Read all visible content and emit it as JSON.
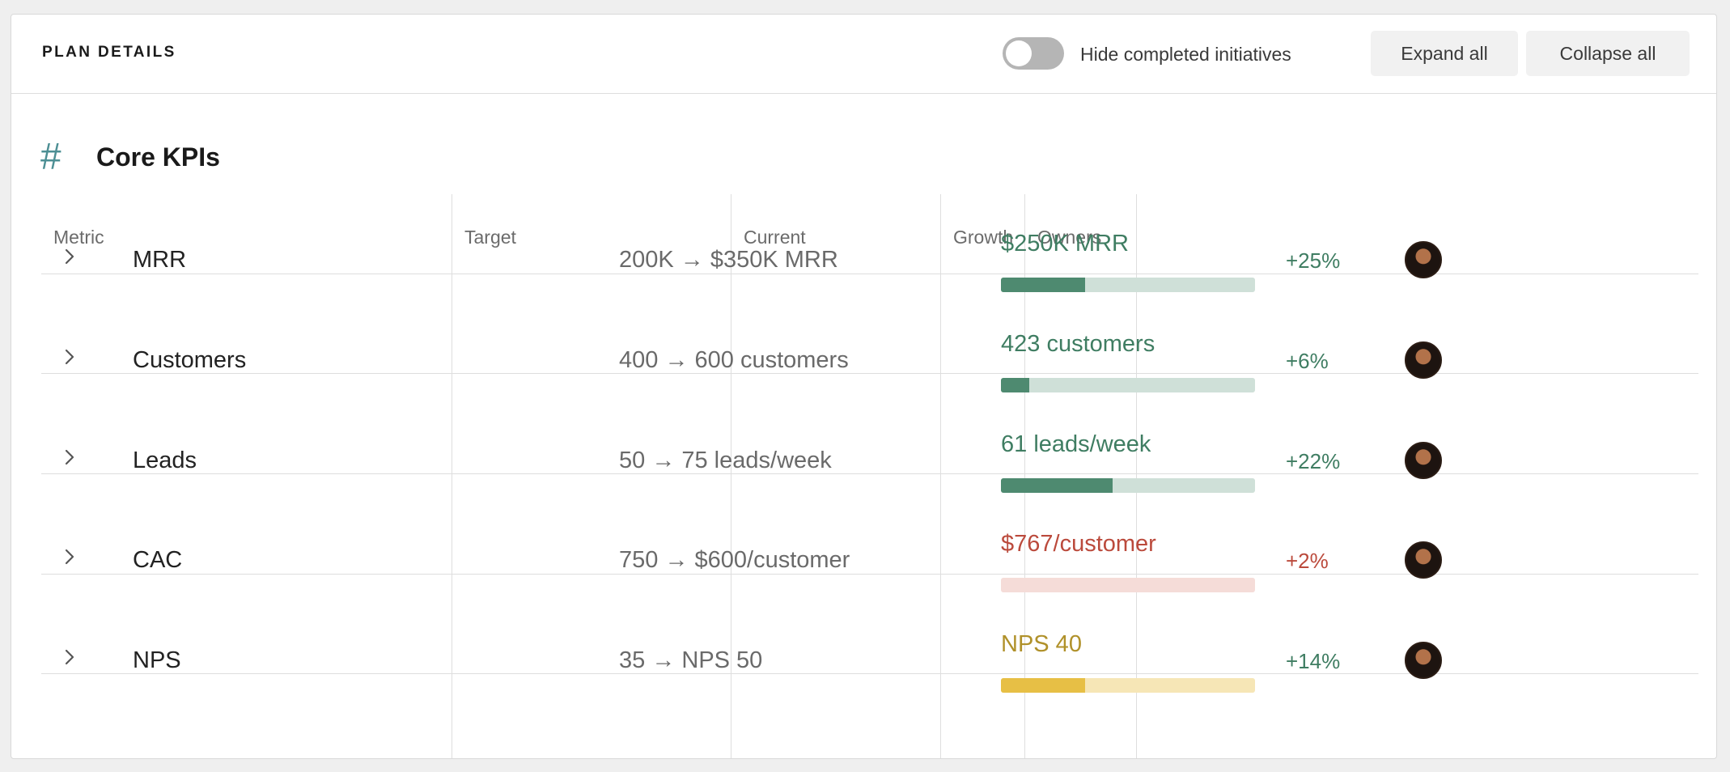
{
  "header": {
    "title": "PLAN DETAILS",
    "toggle": {
      "label": "Hide completed initiatives",
      "on": false
    },
    "expand_all": "Expand all",
    "collapse_all": "Collapse all"
  },
  "section": {
    "icon": "hash-icon",
    "title": "Core KPIs"
  },
  "table": {
    "columns": [
      "Metric",
      "Target",
      "Current",
      "Growth",
      "Owners"
    ],
    "rows": [
      {
        "metric": "MRR",
        "target": "200K → $350K MRR",
        "current": "$250K MRR",
        "progress": 0.33,
        "growth": "+25%",
        "status": "good",
        "owner": "avatar"
      },
      {
        "metric": "Customers",
        "target": "400 → 600 customers",
        "current": "423 customers",
        "progress": 0.11,
        "growth": "+6%",
        "status": "good",
        "owner": "avatar"
      },
      {
        "metric": "Leads",
        "target": "50 → 75 leads/week",
        "current": "61 leads/week",
        "progress": 0.44,
        "growth": "+22%",
        "status": "good",
        "owner": "avatar"
      },
      {
        "metric": "CAC",
        "target": "750 → $600/customer",
        "current": "$767/customer",
        "progress": 0,
        "growth": "+2%",
        "status": "bad",
        "owner": "avatar"
      },
      {
        "metric": "NPS",
        "target": "35 → NPS 50",
        "current": "NPS 40",
        "progress": 0.33,
        "growth": "+14%",
        "status": "warn",
        "owner": "avatar"
      }
    ]
  },
  "colors": {
    "good": {
      "text": "#3f7d62",
      "fill": "#4e8a70",
      "track": "#cfe0d8"
    },
    "bad": {
      "text": "#bb4a3c",
      "fill": "#e39b90",
      "track": "#f5dcd8"
    },
    "warn": {
      "text": "#b0912a",
      "fill": "#e7bf45",
      "track": "#f6e6b6"
    },
    "growth_good": "#3f7d62",
    "growth_bad": "#bb4a3c",
    "accent": "#4d8f94"
  }
}
